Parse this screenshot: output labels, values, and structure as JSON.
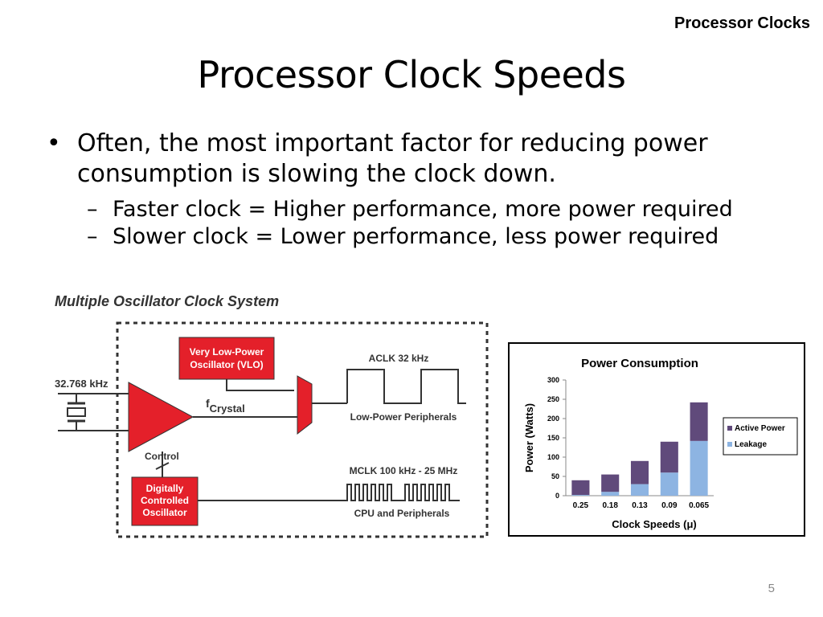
{
  "header_tag": "Processor Clocks",
  "title": "Processor Clock Speeds",
  "bullet_main": "Often, the most important factor for reducing power consumption is slowing the clock down.",
  "sub_bullets": [
    "Faster clock = Higher performance, more power required",
    "Slower clock = Lower performance, less power required"
  ],
  "diagram": {
    "title": "Multiple Oscillator Clock System",
    "input_freq": "32.768 kHz",
    "vlo_line1": "Very Low-Power",
    "vlo_line2": "Oscillator (VLO)",
    "f_crystal_f": "f",
    "f_crystal_sub": "Crystal",
    "control": "Control",
    "dco_line1": "Digitally",
    "dco_line2": "Controlled",
    "dco_line3": "Oscillator",
    "aclk": "ACLK 32 kHz",
    "low_power": "Low-Power Peripherals",
    "mclk": "MCLK 100 kHz - 25 MHz",
    "cpu": "CPU and Peripherals"
  },
  "chart_data": {
    "type": "bar",
    "stacked": true,
    "title": "Power Consumption",
    "ylabel": "Power (Watts)",
    "xlabel": "Clock Speeds (μ)",
    "categories": [
      "0.25",
      "0.18",
      "0.13",
      "0.09",
      "0.065"
    ],
    "ylim": [
      0,
      300
    ],
    "yticks": [
      0,
      50,
      100,
      150,
      200,
      250,
      300
    ],
    "series": [
      {
        "name": "Leakage",
        "values": [
          2,
          10,
          30,
          60,
          142
        ],
        "color": "#8db4e2"
      },
      {
        "name": "Active Power",
        "values": [
          38,
          45,
          60,
          80,
          100
        ],
        "color": "#604a7b"
      }
    ],
    "legend_order": [
      "Active Power",
      "Leakage"
    ],
    "legend_position": "right",
    "grid": false
  },
  "page_number": "5",
  "colors": {
    "red": "#e4202a",
    "chart_purple": "#604a7b",
    "chart_blue": "#8db4e2"
  }
}
